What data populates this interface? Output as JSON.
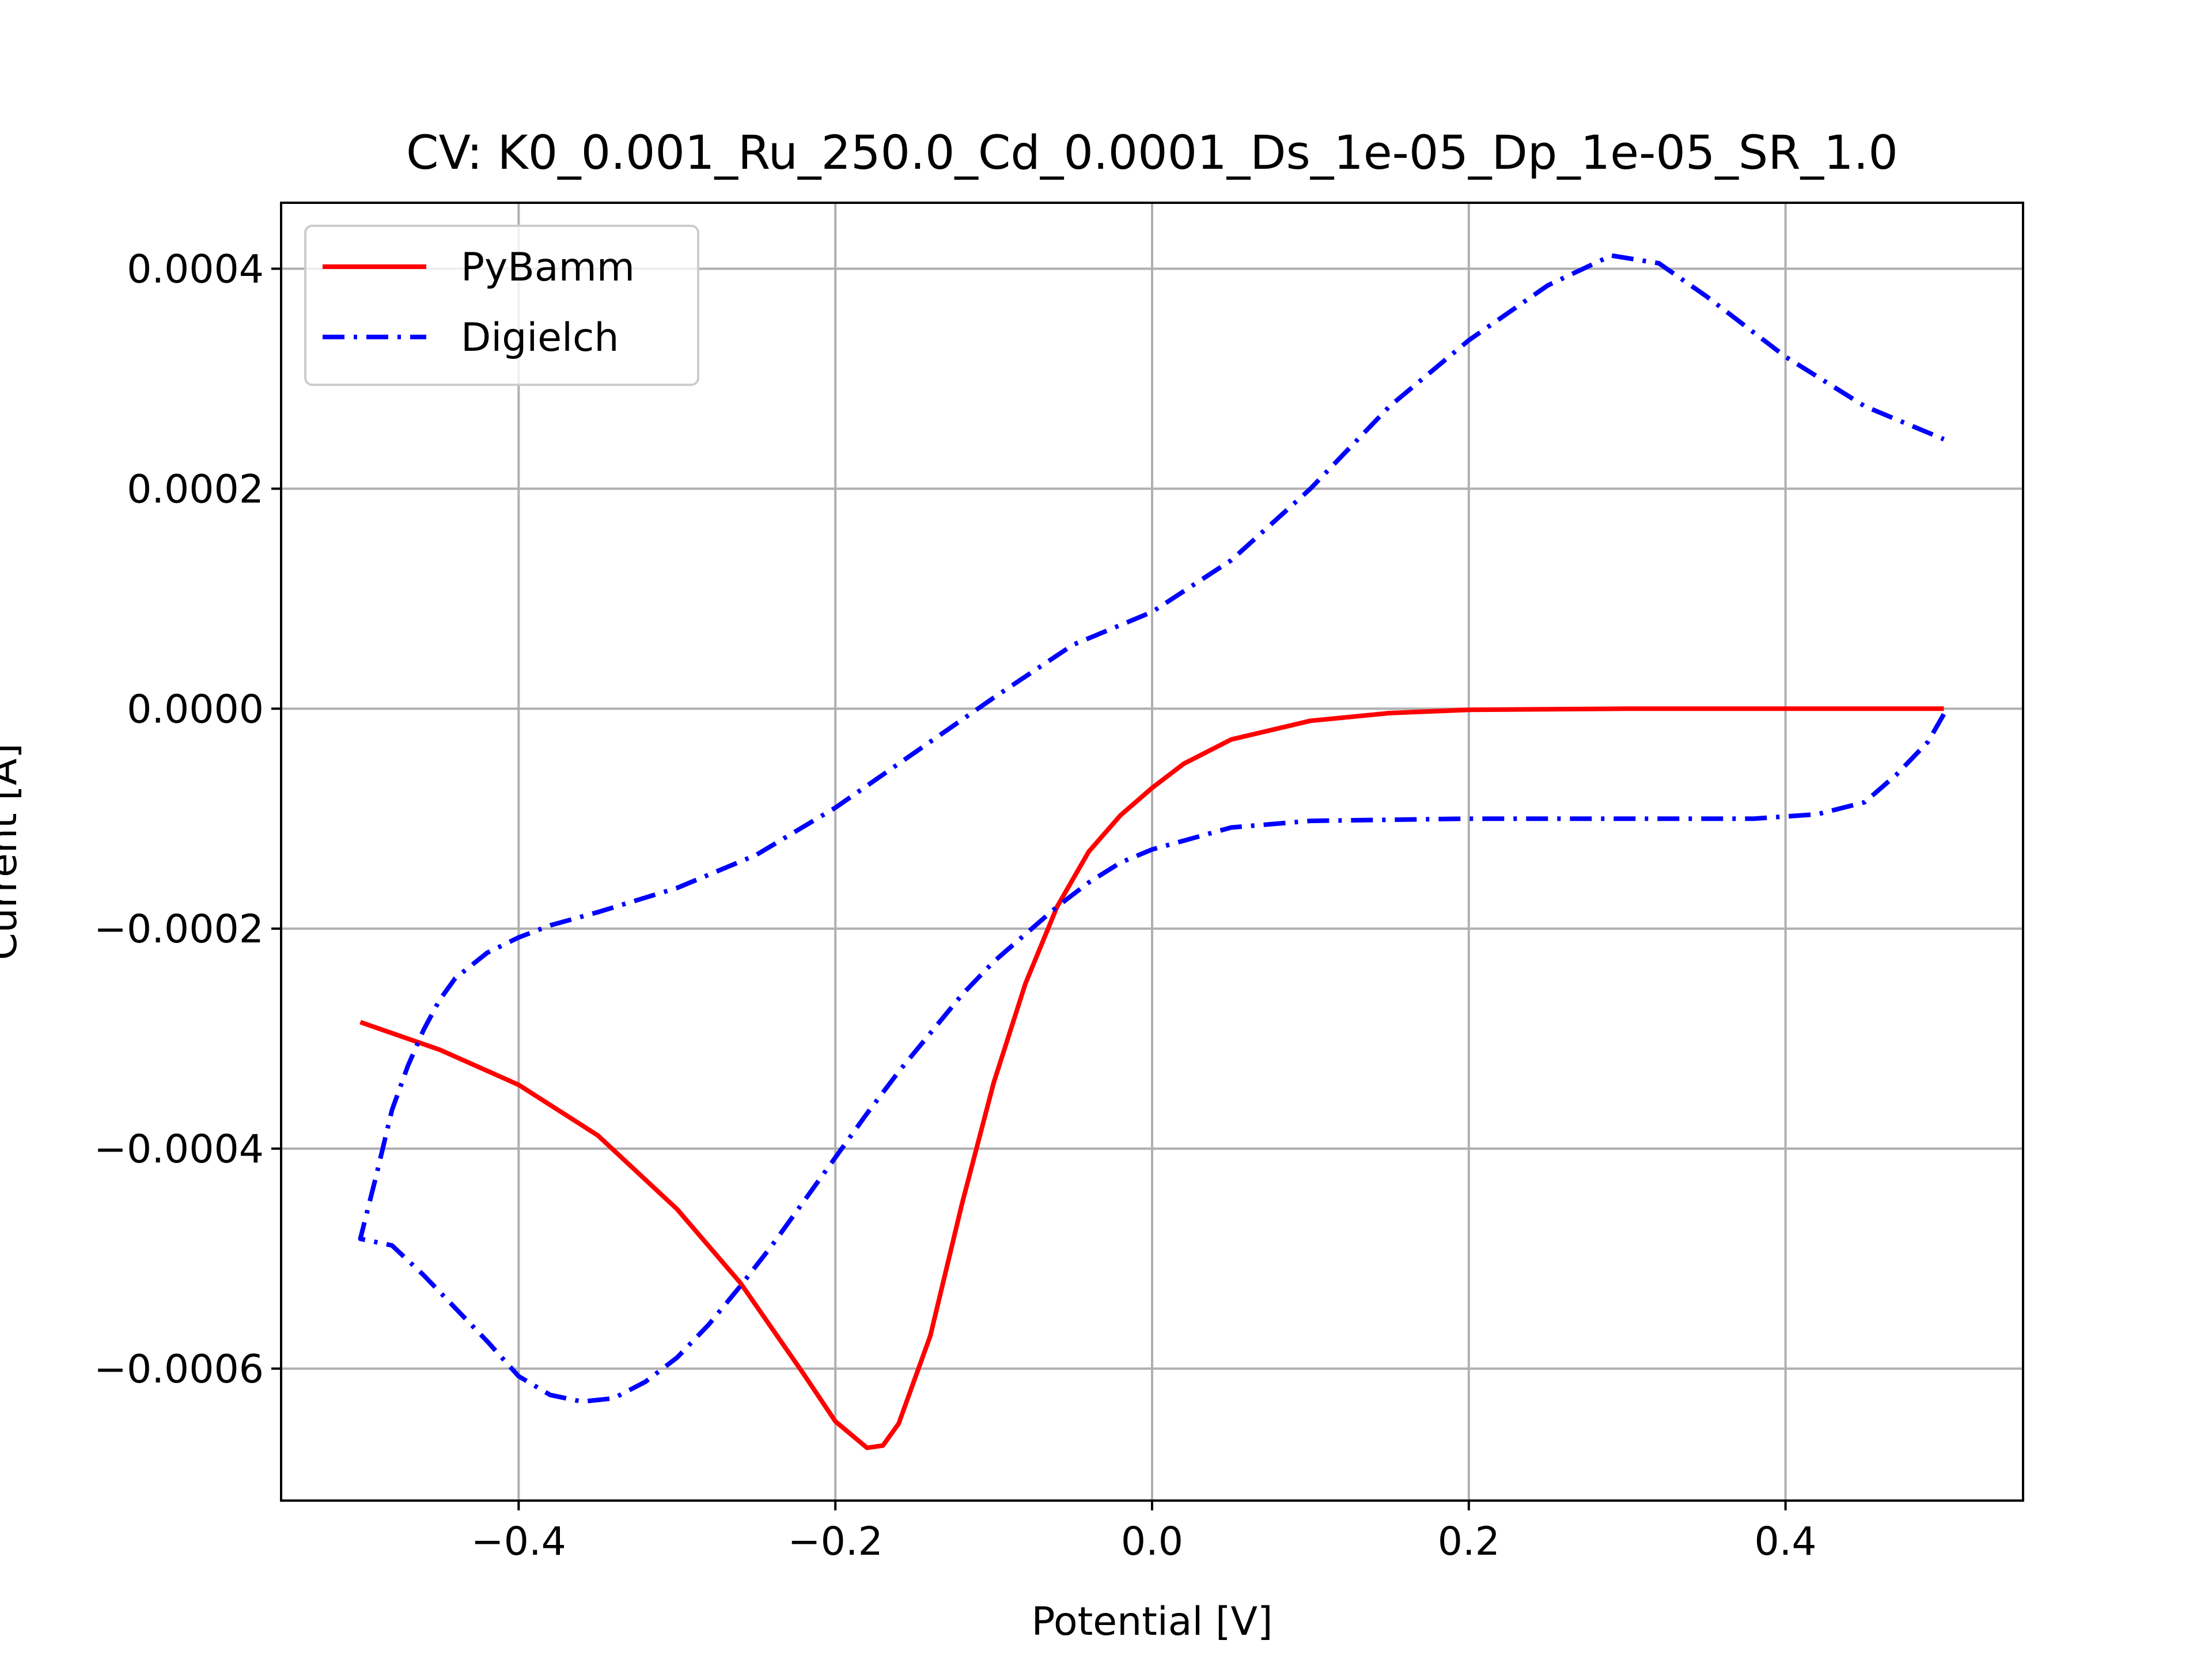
{
  "chart_data": {
    "type": "line",
    "title": "CV: K0_0.001_Ru_250.0_Cd_0.0001_Ds_1e-05_Dp_1e-05_SR_1.0",
    "xlabel": "Potential [V]",
    "ylabel": "Current [A]",
    "xlim": [
      -0.55,
      0.55
    ],
    "ylim": [
      -0.00072,
      0.00046
    ],
    "x_ticks": [
      -0.4,
      -0.2,
      0.0,
      0.2,
      0.4
    ],
    "x_tick_labels": [
      "−0.4",
      "−0.2",
      "0.0",
      "0.2",
      "0.4"
    ],
    "y_ticks": [
      0.0004,
      0.0002,
      0.0,
      -0.0002,
      -0.0004,
      -0.0006
    ],
    "y_tick_labels": [
      "0.0004",
      "0.0002",
      "0.0000",
      "−0.0002",
      "−0.0004",
      "−0.0006"
    ],
    "grid": true,
    "legend_position": "top-left",
    "series": [
      {
        "name": "PyBamm",
        "color": "#ff0000",
        "style": "solid",
        "x": [
          -0.5,
          -0.45,
          -0.4,
          -0.35,
          -0.3,
          -0.26,
          -0.22,
          -0.2,
          -0.18,
          -0.17,
          -0.16,
          -0.14,
          -0.12,
          -0.1,
          -0.08,
          -0.06,
          -0.04,
          -0.02,
          0.0,
          0.02,
          0.05,
          0.1,
          0.15,
          0.2,
          0.3,
          0.4,
          0.5
        ],
        "y": [
          -0.000285,
          -0.00031,
          -0.000342,
          -0.000388,
          -0.000455,
          -0.000522,
          -0.000605,
          -0.000648,
          -0.000672,
          -0.00067,
          -0.00065,
          -0.00057,
          -0.00045,
          -0.00034,
          -0.00025,
          -0.00018,
          -0.00013,
          -9.7e-05,
          -7.2e-05,
          -5e-05,
          -2.8e-05,
          -1.1e-05,
          -4e-06,
          -1e-06,
          0.0,
          0.0,
          0.0
        ]
      },
      {
        "name": "Digielch",
        "color": "#0000ff",
        "style": "dashdot",
        "x": [
          0.5,
          0.49,
          0.47,
          0.45,
          0.42,
          0.38,
          0.3,
          0.2,
          0.1,
          0.05,
          0.0,
          -0.02,
          -0.04,
          -0.06,
          -0.08,
          -0.1,
          -0.12,
          -0.14,
          -0.16,
          -0.18,
          -0.2,
          -0.22,
          -0.24,
          -0.26,
          -0.28,
          -0.3,
          -0.32,
          -0.34,
          -0.36,
          -0.38,
          -0.4,
          -0.42,
          -0.44,
          -0.46,
          -0.48,
          -0.5,
          -0.49,
          -0.48,
          -0.47,
          -0.46,
          -0.45,
          -0.44,
          -0.42,
          -0.4,
          -0.38,
          -0.35,
          -0.3,
          -0.25,
          -0.2,
          -0.15,
          -0.1,
          -0.05,
          0.0,
          0.05,
          0.1,
          0.15,
          0.2,
          0.25,
          0.29,
          0.32,
          0.35,
          0.4,
          0.45,
          0.5
        ],
        "y": [
          -5e-06,
          -3e-05,
          -6e-05,
          -8.5e-05,
          -9.6e-05,
          -0.0001,
          -0.0001,
          -0.0001,
          -0.000102,
          -0.000108,
          -0.000128,
          -0.00014,
          -0.000158,
          -0.00018,
          -0.000205,
          -0.00023,
          -0.00026,
          -0.000295,
          -0.00033,
          -0.000368,
          -0.000408,
          -0.000448,
          -0.000488,
          -0.000525,
          -0.00056,
          -0.00059,
          -0.000612,
          -0.000627,
          -0.00063,
          -0.000624,
          -0.000607,
          -0.000575,
          -0.000545,
          -0.000515,
          -0.000488,
          -0.000482,
          -0.000425,
          -0.000365,
          -0.000325,
          -0.000292,
          -0.000265,
          -0.000245,
          -0.000222,
          -0.000208,
          -0.000197,
          -0.000185,
          -0.000163,
          -0.000133,
          -9e-05,
          -4e-05,
          1e-05,
          5.8e-05,
          8.8e-05,
          0.000135,
          0.0002,
          0.000275,
          0.000335,
          0.000385,
          0.000412,
          0.000405,
          0.000375,
          0.00032,
          0.000275,
          0.000245
        ]
      }
    ]
  }
}
